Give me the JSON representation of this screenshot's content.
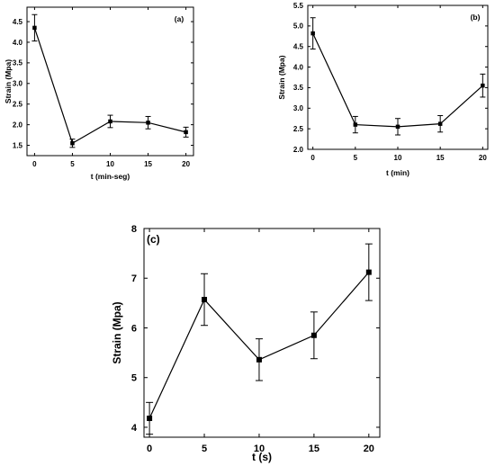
{
  "chart_data": [
    {
      "type": "line",
      "panel_label": "(a)",
      "xlabel": "t (min-seg)",
      "ylabel": "Strain (Mpa)",
      "x": [
        0,
        5,
        10,
        15,
        20
      ],
      "series": [
        {
          "values": [
            4.35,
            1.55,
            2.08,
            2.05,
            1.82
          ],
          "errors": [
            0.32,
            0.1,
            0.15,
            0.15,
            0.12
          ]
        }
      ],
      "xlim": [
        -1,
        21
      ],
      "ylim": [
        1.25,
        4.85
      ],
      "xticks": [
        "0",
        "5",
        "10",
        "15",
        "20"
      ],
      "yticks": [
        "1.5",
        "2.0",
        "2.5",
        "3.0",
        "3.5",
        "4.0",
        "4.5"
      ],
      "grid": false,
      "legend": "none"
    },
    {
      "type": "line",
      "panel_label": "(b)",
      "xlabel": "t (min)",
      "ylabel": "Strain (Mpa)",
      "x": [
        0,
        5,
        10,
        15,
        20
      ],
      "series": [
        {
          "values": [
            4.82,
            2.6,
            2.55,
            2.62,
            3.55
          ],
          "errors": [
            0.38,
            0.2,
            0.2,
            0.2,
            0.28
          ]
        }
      ],
      "xlim": [
        -0.6,
        20.6
      ],
      "ylim": [
        2.0,
        5.5
      ],
      "xticks": [
        "0",
        "5",
        "10",
        "15",
        "20"
      ],
      "yticks": [
        "2.0",
        "2.5",
        "3.0",
        "3.5",
        "4.0",
        "4.5",
        "5.0",
        "5.5"
      ],
      "grid": false,
      "legend": "none"
    },
    {
      "type": "line",
      "panel_label": "(c)",
      "xlabel": "t (s)",
      "ylabel": "Strain (Mpa)",
      "x": [
        0,
        5,
        10,
        15,
        20
      ],
      "series": [
        {
          "values": [
            4.18,
            6.57,
            5.36,
            5.85,
            7.12
          ],
          "errors": [
            0.32,
            0.52,
            0.42,
            0.47,
            0.57
          ]
        }
      ],
      "xlim": [
        -0.5,
        21
      ],
      "ylim": [
        3.8,
        8.0
      ],
      "xticks": [
        "0",
        "5",
        "10",
        "15",
        "20"
      ],
      "yticks": [
        "4",
        "5",
        "6",
        "7",
        "8"
      ],
      "grid": false,
      "legend": "none"
    }
  ]
}
